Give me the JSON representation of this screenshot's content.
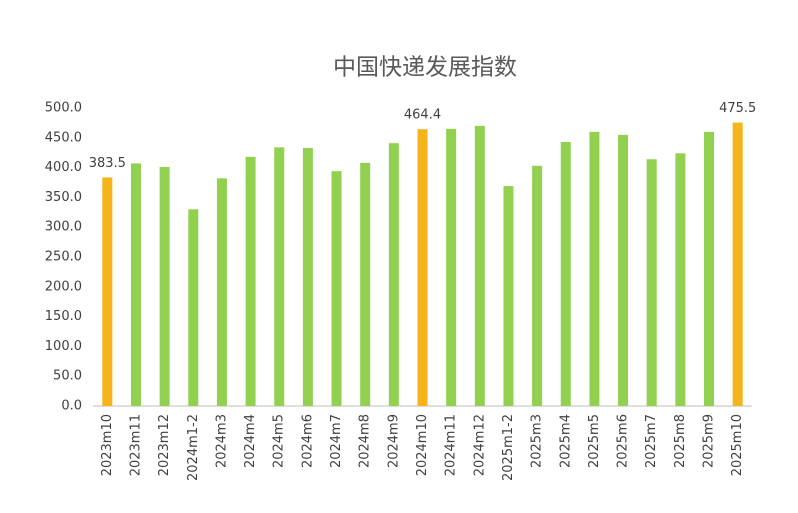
{
  "chart_data": {
    "type": "bar",
    "title": "中国快递发展指数",
    "categories": [
      "2023m10",
      "2023m11",
      "2023m12",
      "2024m1-2",
      "2024m3",
      "2024m4",
      "2024m5",
      "2024m6",
      "2024m7",
      "2024m8",
      "2024m9",
      "2024m10",
      "2024m11",
      "2024m12",
      "2025m1-2",
      "2025m3",
      "2025m4",
      "2025m5",
      "2025m6",
      "2025m7",
      "2025m8",
      "2025m9",
      "2025m10"
    ],
    "values": [
      383.5,
      407,
      401,
      330,
      382,
      418,
      434,
      433,
      394,
      408,
      441,
      464.4,
      465,
      470,
      369,
      403,
      443,
      460,
      455,
      414,
      424,
      460,
      475.5
    ],
    "value_labels": [
      "383.5",
      null,
      null,
      null,
      null,
      null,
      null,
      null,
      null,
      null,
      null,
      "464.4",
      null,
      null,
      null,
      null,
      null,
      null,
      null,
      null,
      null,
      null,
      "475.5"
    ],
    "colors": [
      "#f4b41a",
      "#92d050",
      "#92d050",
      "#92d050",
      "#92d050",
      "#92d050",
      "#92d050",
      "#92d050",
      "#92d050",
      "#92d050",
      "#92d050",
      "#f4b41a",
      "#92d050",
      "#92d050",
      "#92d050",
      "#92d050",
      "#92d050",
      "#92d050",
      "#92d050",
      "#92d050",
      "#92d050",
      "#92d050",
      "#f4b41a"
    ],
    "ylim": [
      0,
      500
    ],
    "yticks": [
      {
        "value": 0,
        "label": "0.0"
      },
      {
        "value": 50,
        "label": "50.0"
      },
      {
        "value": 100,
        "label": "100.0"
      },
      {
        "value": 150,
        "label": "150.0"
      },
      {
        "value": 200,
        "label": "200.0"
      },
      {
        "value": 250,
        "label": "250.0"
      },
      {
        "value": 300,
        "label": "300.0"
      },
      {
        "value": 350,
        "label": "350.0"
      },
      {
        "value": 400,
        "label": "400.0"
      },
      {
        "value": 450,
        "label": "450.0"
      },
      {
        "value": 500,
        "label": "500.0"
      }
    ],
    "grid": false
  }
}
